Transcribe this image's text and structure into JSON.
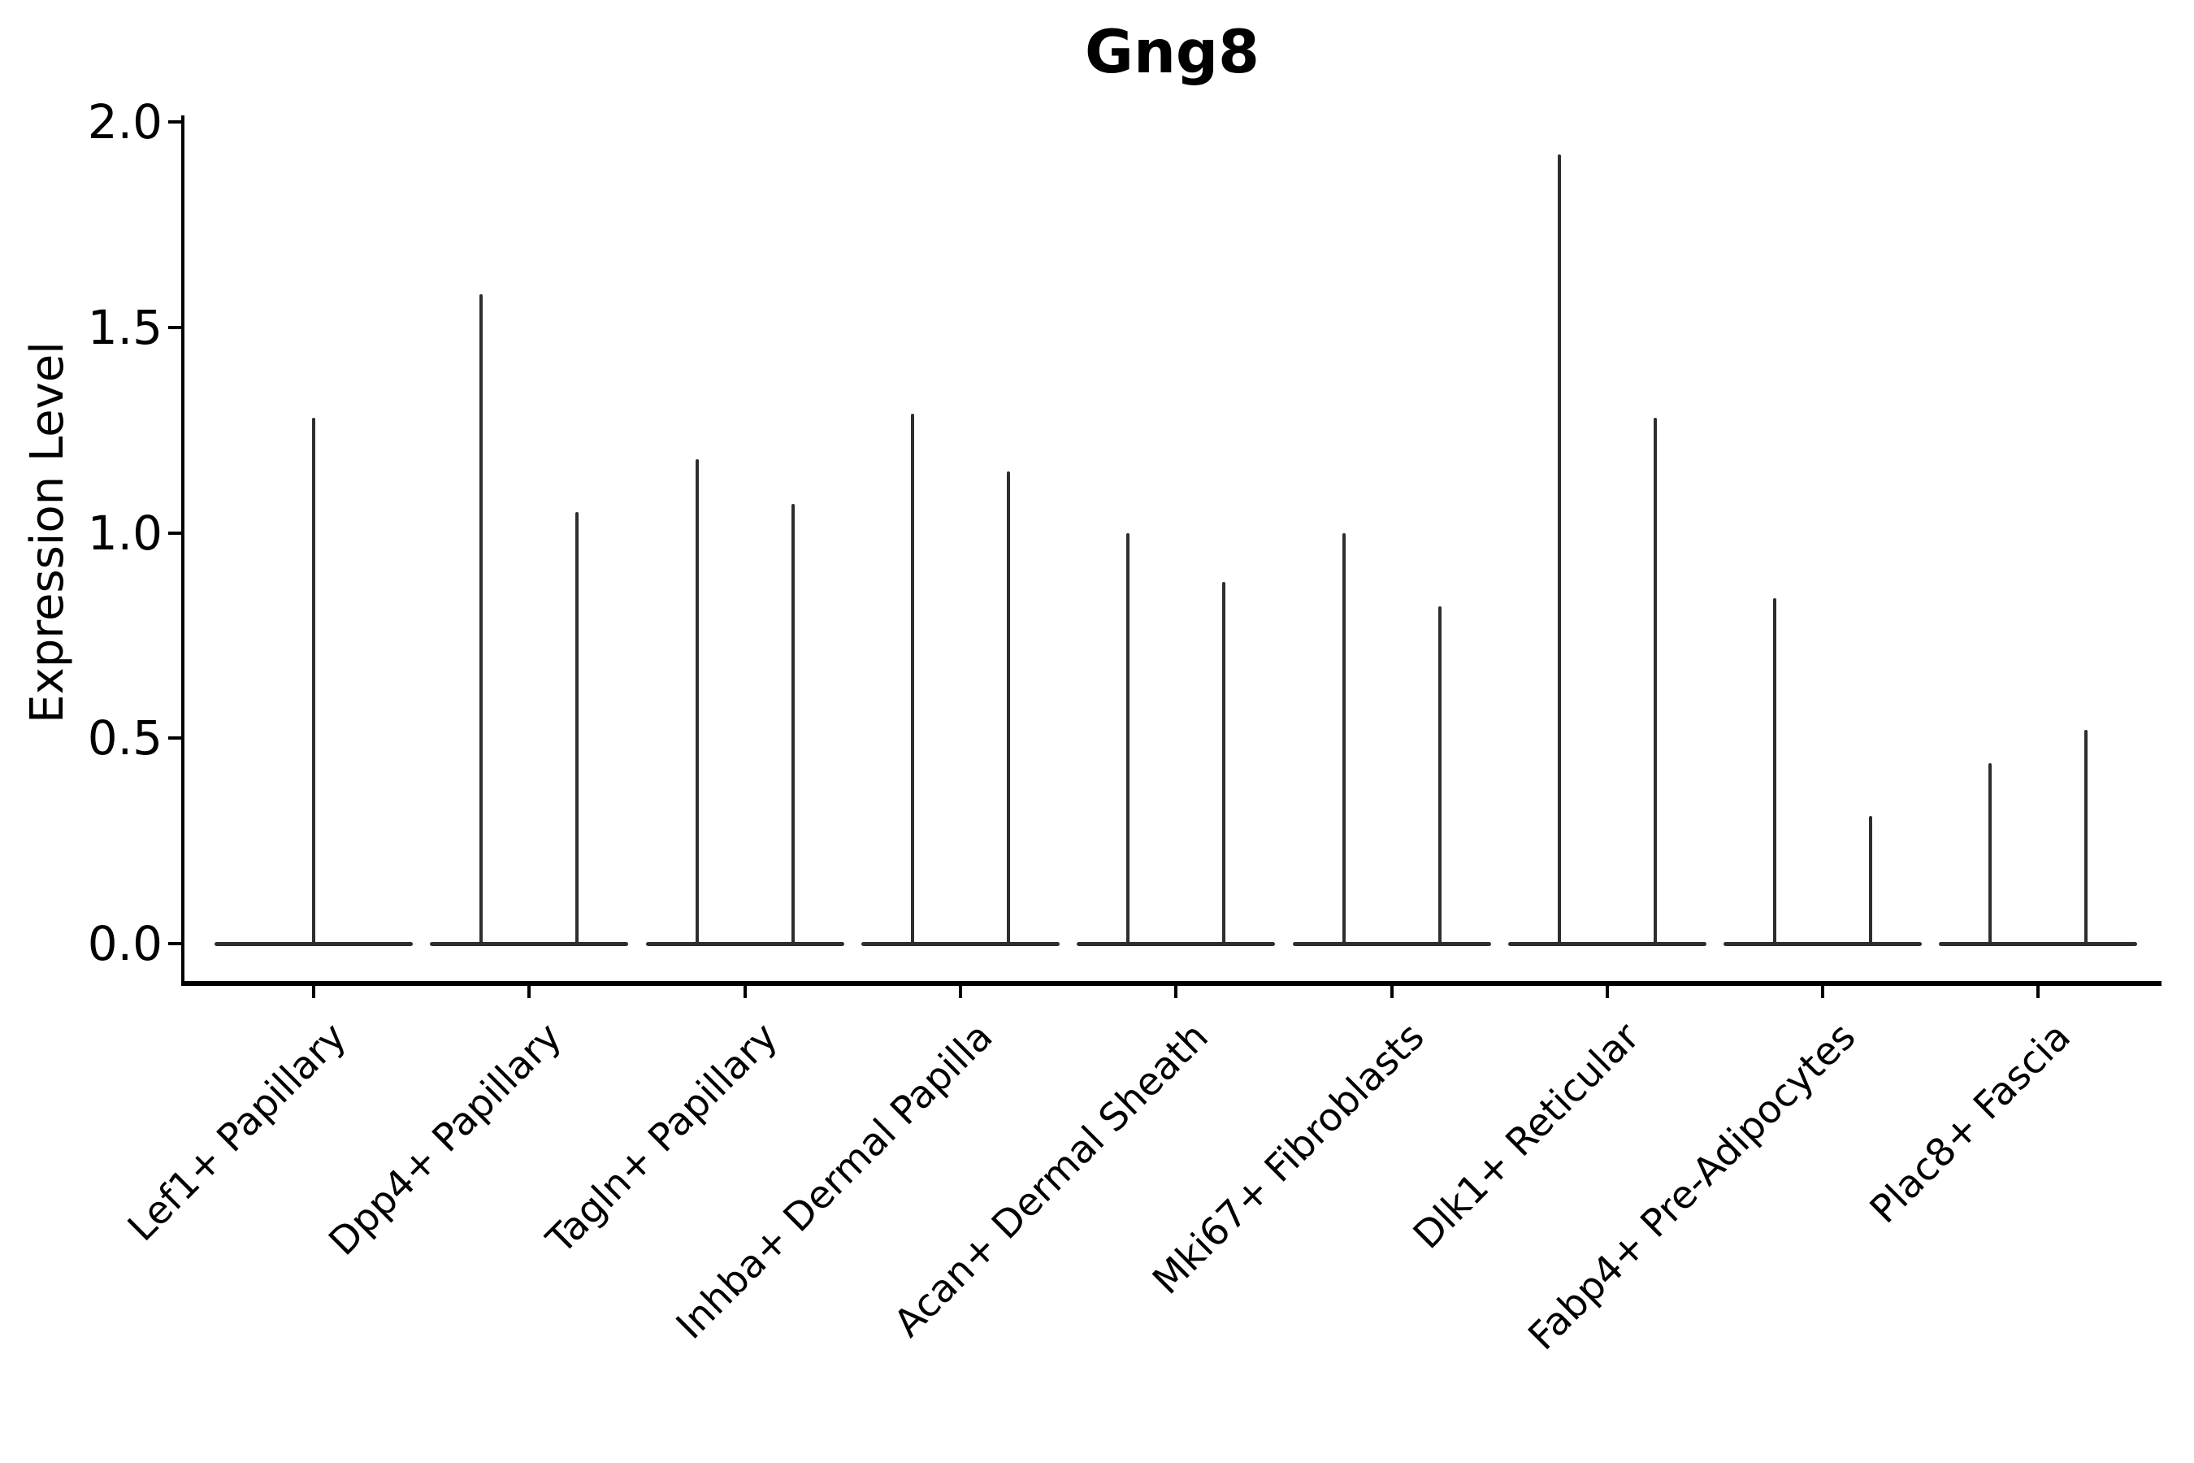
{
  "title": "Gng8",
  "y_axis": {
    "label": "Expression Level",
    "tick_labels": [
      "0.0",
      "0.5",
      "1.0",
      "1.5",
      "2.0"
    ]
  },
  "chart_data": {
    "type": "violin",
    "title": "Gng8",
    "ylabel": "Expression Level",
    "ylim": [
      0.0,
      2.0
    ],
    "yticks": [
      0.0,
      0.5,
      1.0,
      1.5,
      2.0
    ],
    "grid": false,
    "legend": "none",
    "categories": [
      "Lef1+ Papillary",
      "Dpp4+ Papillary",
      "Tagln+ Papillary",
      "Inhba+ Dermal Papilla",
      "Acan+ Dermal Sheath",
      "Mki67+ Fibroblasts",
      "Dlk1+ Reticular",
      "Fabp4+ Pre-Adipocytes",
      "Plac8+ Fascia"
    ],
    "violin_maxima_per_category": [
      [
        1.28
      ],
      [
        1.58,
        1.05
      ],
      [
        1.18,
        1.07
      ],
      [
        1.29,
        1.15
      ],
      [
        1.0,
        0.88
      ],
      [
        1.0,
        0.82
      ],
      [
        1.92,
        1.28
      ],
      [
        0.84,
        0.31
      ],
      [
        0.44,
        0.52
      ]
    ]
  },
  "colors": {
    "violin_line": "#2e2e2e",
    "axis": "#000000",
    "text": "#000000",
    "background": "#ffffff"
  }
}
